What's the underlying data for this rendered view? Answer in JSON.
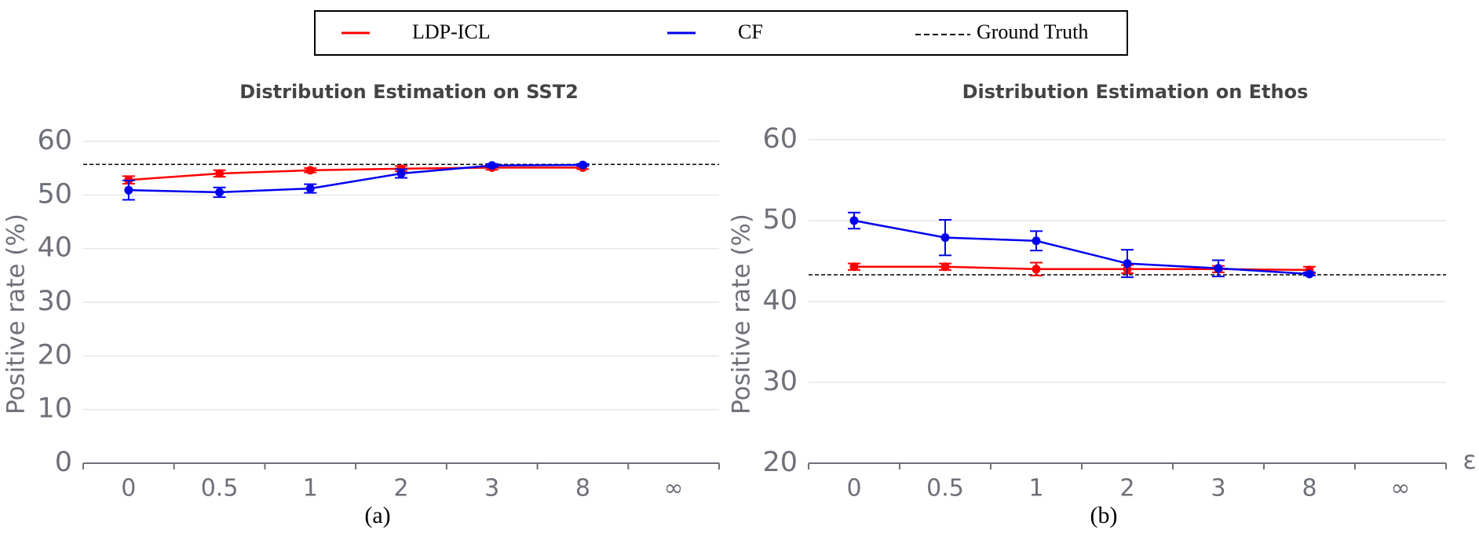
{
  "chart_data": [
    {
      "type": "line",
      "title": "Distribution Estimation on SST2",
      "caption": "(a)",
      "ylabel": "Positive rate  (%)",
      "categories": [
        "0",
        "0.5",
        "1",
        "2",
        "3",
        "8",
        "∞"
      ],
      "ylim": [
        0,
        60
      ],
      "yticks": [
        0,
        10,
        20,
        30,
        40,
        50,
        60
      ],
      "grid": true,
      "series": [
        {
          "name": "LDP-ICL",
          "color": "#ff0000",
          "values": [
            52.8,
            54.0,
            54.6,
            54.9,
            55.1,
            55.1,
            null
          ],
          "errors": [
            0.7,
            0.6,
            0.4,
            0.5,
            0.4,
            0.3,
            null
          ]
        },
        {
          "name": "CF",
          "color": "#0000ee",
          "values": [
            50.9,
            50.5,
            51.2,
            54.0,
            55.5,
            55.6,
            null
          ],
          "errors": [
            1.8,
            0.9,
            0.8,
            0.8,
            0.3,
            0.2,
            null
          ]
        }
      ],
      "ground_truth": {
        "name": "Ground Truth",
        "value": 55.7,
        "color": "#000000"
      }
    },
    {
      "type": "line",
      "title": "Distribution Estimation on Ethos",
      "caption": "(b)",
      "ylabel": "Positive rate  (%)",
      "xlabel": "ε",
      "categories": [
        "0",
        "0.5",
        "1",
        "2",
        "3",
        "8",
        "∞"
      ],
      "ylim": [
        20,
        60
      ],
      "yticks": [
        20,
        30,
        40,
        50,
        60
      ],
      "grid": true,
      "series": [
        {
          "color": "#ff0000",
          "values": [
            44.3,
            44.3,
            44.0,
            44.0,
            44.0,
            43.9,
            null
          ],
          "errors": [
            0.4,
            0.4,
            0.8,
            0.5,
            0.4,
            0.4,
            null
          ]
        },
        {
          "color": "#0000ee",
          "values": [
            50.0,
            47.9,
            47.5,
            44.7,
            44.1,
            43.4,
            null
          ],
          "errors": [
            1.0,
            2.2,
            1.2,
            1.7,
            1.0,
            0.2,
            null
          ]
        }
      ],
      "ground_truth": {
        "value": 43.3,
        "color": "#000000"
      }
    }
  ]
}
